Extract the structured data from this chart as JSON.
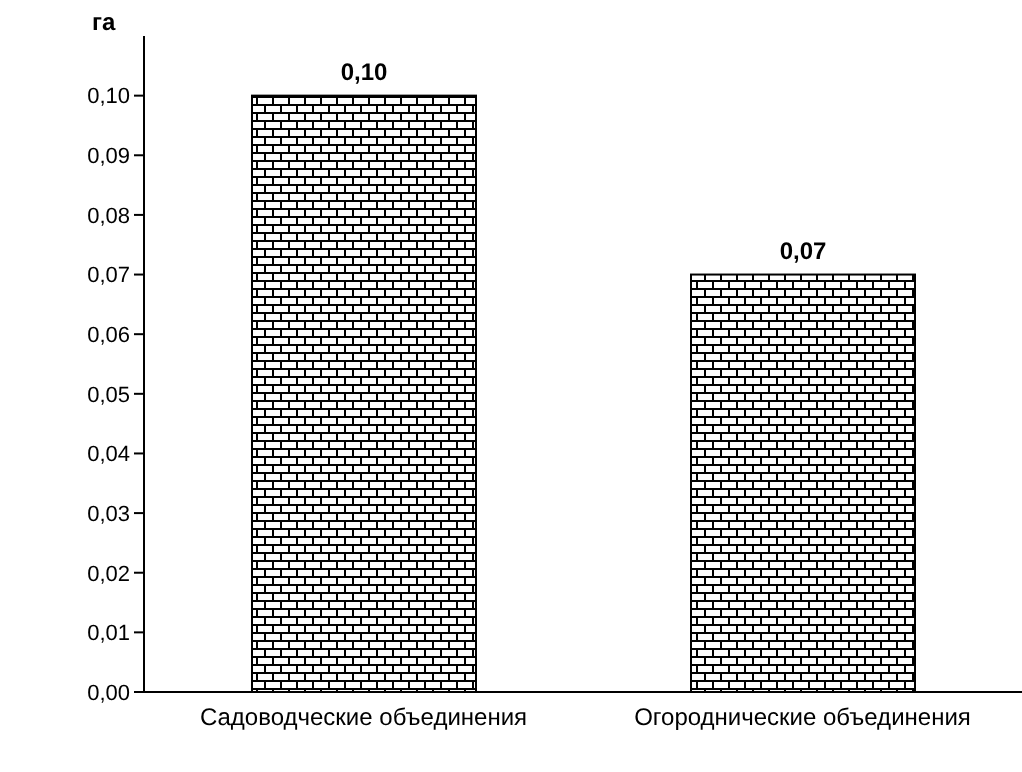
{
  "chart_data": {
    "type": "bar",
    "ylabel": "га",
    "categories": [
      "Садоводческие объединения",
      "Огороднические объединения"
    ],
    "values": [
      0.1,
      0.07
    ],
    "color": "#000000",
    "value_labels": [
      "0,10",
      "0,07"
    ],
    "ylim": [
      0,
      0.11
    ],
    "yticks": [
      {
        "value": 0,
        "label": "0,00"
      },
      {
        "value": 0.01,
        "label": "0,01"
      },
      {
        "value": 0.02,
        "label": "0,02"
      },
      {
        "value": 0.03,
        "label": "0,03"
      },
      {
        "value": 0.04,
        "label": "0,04"
      },
      {
        "value": 0.05,
        "label": "0,05"
      },
      {
        "value": 0.06,
        "label": "0,06"
      },
      {
        "value": 0.07,
        "label": "0,07"
      },
      {
        "value": 0.08,
        "label": "0,08"
      },
      {
        "value": 0.09,
        "label": "0,09"
      },
      {
        "value": 0.1,
        "label": "0,10"
      }
    ],
    "grid": false,
    "legend": false
  }
}
